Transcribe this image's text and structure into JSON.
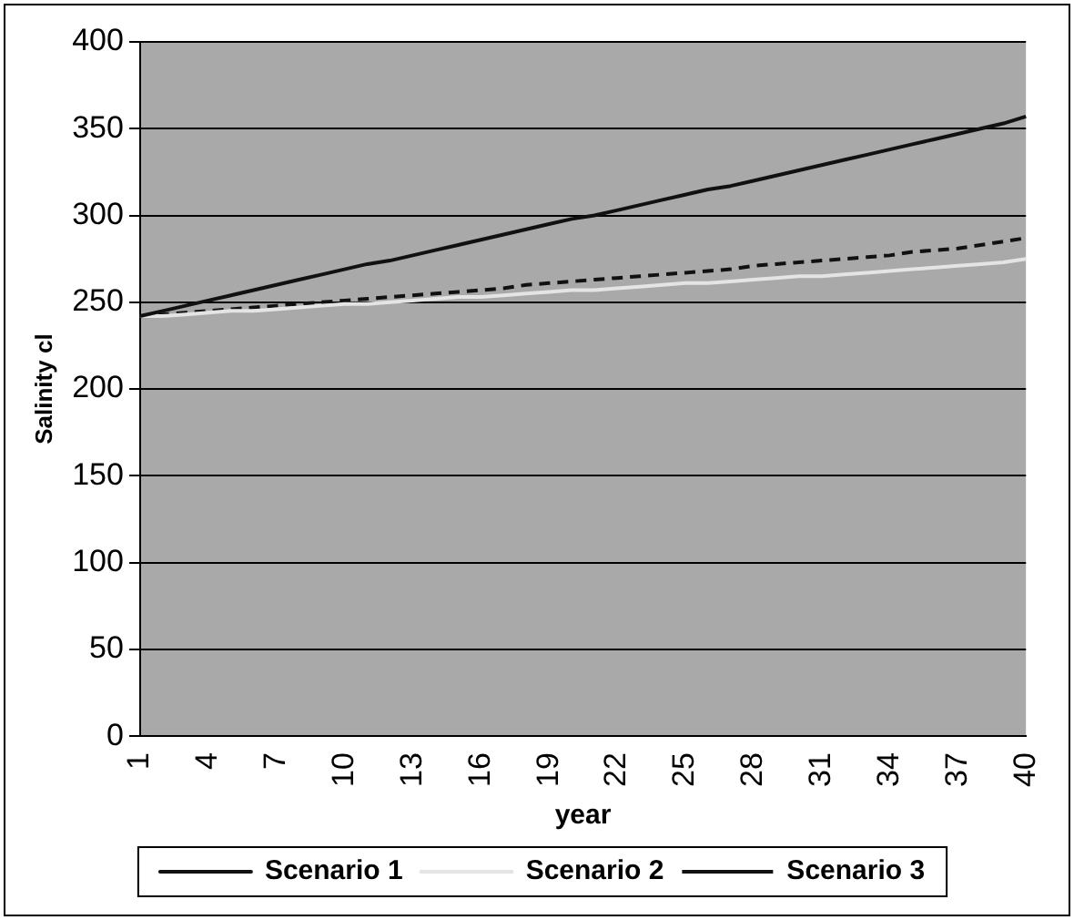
{
  "chart_data": {
    "type": "line",
    "xlabel": "year",
    "ylabel": "Salinity cl",
    "categories": [
      "1",
      null,
      null,
      "4",
      null,
      null,
      "7",
      null,
      null,
      "10",
      null,
      null,
      "13",
      null,
      null,
      "16",
      null,
      null,
      "19",
      null,
      null,
      "22",
      null,
      null,
      "25",
      null,
      null,
      "28",
      null,
      null,
      "31",
      null,
      null,
      "34",
      null,
      null,
      "37",
      null,
      null,
      "40"
    ],
    "series": [
      {
        "name": "Scenario 1",
        "color": "#111111",
        "line_style": "solid",
        "values": [
          242,
          245,
          248,
          251,
          254,
          257,
          260,
          263,
          266,
          269,
          272,
          274,
          277,
          280,
          283,
          286,
          289,
          292,
          295,
          298,
          300,
          303,
          306,
          309,
          312,
          315,
          317,
          320,
          323,
          326,
          329,
          332,
          335,
          338,
          341,
          344,
          347,
          350,
          353,
          357
        ]
      },
      {
        "name": "Scenario 2",
        "color": "#e4e4e4",
        "line_style": "solid",
        "values": [
          242,
          242,
          243,
          244,
          245,
          245,
          246,
          247,
          248,
          249,
          249,
          250,
          251,
          252,
          253,
          253,
          254,
          255,
          256,
          257,
          257,
          258,
          259,
          260,
          261,
          261,
          262,
          263,
          264,
          265,
          265,
          266,
          267,
          268,
          269,
          270,
          271,
          272,
          273,
          275
        ]
      },
      {
        "name": "Scenario 3",
        "color": "#111111",
        "line_style": "dashed",
        "values": [
          242,
          243,
          244,
          245,
          246,
          247,
          248,
          249,
          250,
          251,
          252,
          253,
          254,
          255,
          256,
          257,
          258,
          260,
          261,
          262,
          263,
          264,
          265,
          266,
          267,
          268,
          269,
          271,
          272,
          273,
          274,
          275,
          276,
          277,
          279,
          280,
          281,
          283,
          285,
          287
        ]
      }
    ],
    "ylim": [
      0,
      400
    ],
    "yticks": [
      0,
      50,
      100,
      150,
      200,
      250,
      300,
      350,
      400
    ],
    "grid": "y",
    "legend": "bottom",
    "marker": "none"
  }
}
